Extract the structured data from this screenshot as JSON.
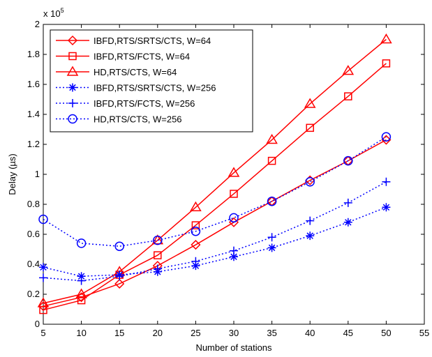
{
  "chart_data": {
    "type": "line",
    "title": "",
    "xlabel": "Number of stations",
    "ylabel": "Delay (µs)",
    "y_scale_note": "x 10",
    "y_scale_exponent": "5",
    "xlim": [
      5,
      55
    ],
    "ylim": [
      0,
      200000
    ],
    "x_ticks": [
      "5",
      "10",
      "15",
      "20",
      "25",
      "30",
      "35",
      "40",
      "45",
      "50",
      "55"
    ],
    "y_ticks": [
      "0",
      "0.2",
      "0.4",
      "0.6",
      "0.8",
      "1",
      "1.2",
      "1.4",
      "1.6",
      "1.8",
      "2"
    ],
    "grid": false,
    "legend_position": "top-left",
    "x": [
      5,
      10,
      15,
      20,
      25,
      30,
      35,
      40,
      45,
      50
    ],
    "series": [
      {
        "name": "IBFD,RTS/SRTS/CTS, W=64",
        "color": "#ff0000",
        "line": "solid",
        "marker": "diamond",
        "values": [
          12000,
          18000,
          27000,
          39000,
          53000,
          68000,
          82000,
          96000,
          109000,
          123000
        ]
      },
      {
        "name": "IBFD,RTS/FCTS, W=64",
        "color": "#ff0000",
        "line": "solid",
        "marker": "square",
        "values": [
          9500,
          16000,
          33000,
          46000,
          66000,
          87000,
          109000,
          131000,
          152000,
          174000
        ]
      },
      {
        "name": "HD,RTS/CTS, W=64",
        "color": "#ff0000",
        "line": "solid",
        "marker": "triangle",
        "values": [
          14000,
          20000,
          35000,
          56000,
          78000,
          101000,
          123000,
          147000,
          169000,
          190000
        ]
      },
      {
        "name": "IBFD,RTS/SRTS/CTS, W=256",
        "color": "#0000ff",
        "line": "dotted",
        "marker": "asterisk",
        "values": [
          38000,
          32000,
          33000,
          35000,
          39000,
          45000,
          51000,
          59000,
          68000,
          78000
        ]
      },
      {
        "name": "IBFD,RTS/FCTS, W=256",
        "color": "#0000ff",
        "line": "dotted",
        "marker": "plus",
        "values": [
          31000,
          29000,
          32000,
          37000,
          42000,
          49000,
          58000,
          69000,
          81000,
          95000
        ]
      },
      {
        "name": "HD,RTS/CTS, W=256",
        "color": "#0000ff",
        "line": "dotted",
        "marker": "circle",
        "values": [
          70000,
          54000,
          52000,
          56000,
          62000,
          71000,
          82000,
          95000,
          109000,
          125000
        ]
      }
    ]
  }
}
